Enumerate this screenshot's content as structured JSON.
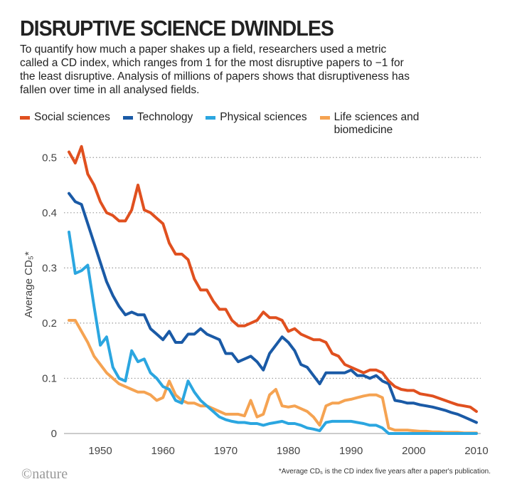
{
  "chart_data": {
    "type": "line",
    "title": "DISRUPTIVE SCIENCE DWINDLES",
    "subtitle": "To quantify how much a paper shakes up a field, researchers used a metric called a CD index, which ranges from 1 for the most disruptive papers to −1 for the least disruptive. Analysis of millions of papers shows that disruptiveness has fallen over time in all analysed fields.",
    "y_label": "Average CD₅*",
    "footnote": "*Average CD₅ is the CD index five years after a paper's publication.",
    "source": "©nature",
    "x": [
      1945,
      1946,
      1947,
      1948,
      1949,
      1950,
      1951,
      1952,
      1953,
      1954,
      1955,
      1956,
      1957,
      1958,
      1959,
      1960,
      1961,
      1962,
      1963,
      1964,
      1965,
      1966,
      1967,
      1968,
      1969,
      1970,
      1971,
      1972,
      1973,
      1974,
      1975,
      1976,
      1977,
      1978,
      1979,
      1980,
      1981,
      1982,
      1983,
      1984,
      1985,
      1986,
      1987,
      1988,
      1989,
      1990,
      1991,
      1992,
      1993,
      1994,
      1995,
      1996,
      1997,
      1998,
      1999,
      2000,
      2001,
      2002,
      2003,
      2004,
      2005,
      2006,
      2007,
      2008,
      2009,
      2010
    ],
    "xlim": [
      1945,
      2010
    ],
    "xticks": [
      1950,
      1960,
      1970,
      1980,
      1990,
      2000,
      2010
    ],
    "ylim": [
      0,
      0.53
    ],
    "yticks": [
      0,
      0.1,
      0.2,
      0.3,
      0.4,
      0.5
    ],
    "grid": true,
    "series": [
      {
        "name": "Social sciences",
        "color": "#e0501f",
        "values": [
          0.51,
          0.49,
          0.52,
          0.47,
          0.45,
          0.42,
          0.4,
          0.395,
          0.385,
          0.385,
          0.405,
          0.45,
          0.405,
          0.4,
          0.39,
          0.38,
          0.345,
          0.325,
          0.325,
          0.315,
          0.28,
          0.26,
          0.26,
          0.24,
          0.225,
          0.225,
          0.205,
          0.195,
          0.195,
          0.2,
          0.205,
          0.22,
          0.21,
          0.21,
          0.205,
          0.185,
          0.19,
          0.18,
          0.175,
          0.17,
          0.17,
          0.165,
          0.145,
          0.14,
          0.125,
          0.12,
          0.115,
          0.11,
          0.115,
          0.115,
          0.11,
          0.095,
          0.085,
          0.08,
          0.078,
          0.078,
          0.072,
          0.07,
          0.068,
          0.064,
          0.06,
          0.056,
          0.052,
          0.05,
          0.048,
          0.04
        ]
      },
      {
        "name": "Technology",
        "color": "#1a5aa6",
        "values": [
          0.435,
          0.42,
          0.415,
          0.38,
          0.345,
          0.31,
          0.275,
          0.25,
          0.23,
          0.215,
          0.22,
          0.215,
          0.215,
          0.19,
          0.18,
          0.17,
          0.185,
          0.165,
          0.165,
          0.18,
          0.18,
          0.19,
          0.18,
          0.175,
          0.17,
          0.145,
          0.145,
          0.13,
          0.135,
          0.14,
          0.13,
          0.115,
          0.145,
          0.16,
          0.175,
          0.165,
          0.15,
          0.125,
          0.12,
          0.105,
          0.09,
          0.11,
          0.11,
          0.11,
          0.11,
          0.115,
          0.105,
          0.105,
          0.1,
          0.105,
          0.095,
          0.09,
          0.06,
          0.058,
          0.055,
          0.055,
          0.052,
          0.05,
          0.048,
          0.045,
          0.042,
          0.038,
          0.035,
          0.03,
          0.025,
          0.02
        ]
      },
      {
        "name": "Physical sciences",
        "color": "#2ba6e0",
        "values": [
          0.365,
          0.29,
          0.295,
          0.305,
          0.23,
          0.16,
          0.175,
          0.12,
          0.1,
          0.095,
          0.15,
          0.13,
          0.135,
          0.11,
          0.1,
          0.085,
          0.08,
          0.06,
          0.055,
          0.095,
          0.075,
          0.06,
          0.05,
          0.04,
          0.03,
          0.025,
          0.022,
          0.02,
          0.02,
          0.018,
          0.018,
          0.015,
          0.018,
          0.02,
          0.022,
          0.018,
          0.018,
          0.015,
          0.01,
          0.008,
          0.005,
          0.02,
          0.022,
          0.022,
          0.022,
          0.022,
          0.02,
          0.018,
          0.015,
          0.015,
          0.01,
          0,
          0,
          0,
          0,
          0,
          0,
          0,
          0,
          0,
          0,
          0,
          0,
          0,
          0,
          0
        ]
      },
      {
        "name": "Life sciences and biomedicine",
        "color": "#f5a352",
        "values": [
          0.205,
          0.205,
          0.185,
          0.165,
          0.14,
          0.125,
          0.11,
          0.1,
          0.09,
          0.085,
          0.08,
          0.075,
          0.075,
          0.07,
          0.06,
          0.065,
          0.095,
          0.07,
          0.06,
          0.055,
          0.055,
          0.05,
          0.05,
          0.045,
          0.04,
          0.035,
          0.035,
          0.035,
          0.032,
          0.06,
          0.03,
          0.035,
          0.07,
          0.08,
          0.05,
          0.048,
          0.05,
          0.045,
          0.04,
          0.03,
          0.015,
          0.05,
          0.055,
          0.055,
          0.06,
          0.062,
          0.065,
          0.068,
          0.07,
          0.07,
          0.065,
          0.01,
          0.006,
          0.006,
          0.006,
          0.005,
          0.004,
          0.004,
          0.003,
          0.003,
          0.002,
          0.002,
          0.002,
          0.001,
          0.001,
          0.001
        ]
      }
    ]
  }
}
